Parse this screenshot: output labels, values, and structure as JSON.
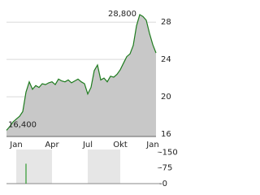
{
  "chart_data": [
    {
      "type": "line",
      "categories": [
        null,
        null,
        null,
        "Jan",
        null,
        null,
        null,
        null,
        null,
        null,
        null,
        null,
        null,
        null,
        "Apr",
        null,
        null,
        null,
        null,
        null,
        null,
        null,
        null,
        null,
        null,
        "Jul",
        null,
        null,
        null,
        null,
        null,
        null,
        null,
        null,
        null,
        "Okt",
        null,
        null,
        null,
        null,
        null,
        null,
        null,
        null,
        null,
        null,
        "Jan"
      ],
      "values": [
        16.4,
        16.8,
        17.3,
        17.6,
        17.9,
        18.4,
        20.5,
        21.6,
        20.8,
        21.2,
        21.0,
        21.4,
        21.3,
        21.5,
        21.6,
        21.3,
        21.9,
        21.7,
        21.6,
        21.8,
        21.5,
        21.7,
        21.9,
        21.6,
        21.4,
        20.3,
        21.0,
        22.8,
        23.4,
        21.8,
        22.0,
        21.6,
        22.2,
        22.1,
        22.4,
        22.9,
        23.6,
        24.3,
        24.6,
        25.5,
        27.6,
        28.8,
        28.6,
        28.2,
        26.8,
        25.6,
        24.7
      ],
      "color": "#1e7b1e",
      "fill": "#c8c8c8",
      "ylim": [
        16,
        29.5
      ],
      "yticks": [
        16,
        20,
        24,
        28
      ],
      "grid": true,
      "annotations": [
        "28,800",
        "16,400"
      ]
    },
    {
      "type": "bar",
      "values": [
        0,
        0,
        0,
        0,
        0,
        0,
        95,
        0,
        0,
        0,
        0,
        0,
        0,
        0,
        0,
        0,
        0,
        0,
        0,
        0,
        0,
        0,
        0,
        0,
        0,
        0,
        0,
        0,
        0,
        0,
        0,
        0,
        0,
        0,
        0,
        0,
        0,
        0,
        0,
        0,
        0,
        0,
        0,
        0,
        0,
        0,
        0
      ],
      "color": "#2e9a2e",
      "ylim": [
        0,
        155
      ],
      "yticks": [
        {
          "value": 150,
          "label": "-150"
        },
        {
          "value": 75,
          "label": "-75"
        },
        {
          "value": 0,
          "label": "-0"
        }
      ]
    }
  ]
}
